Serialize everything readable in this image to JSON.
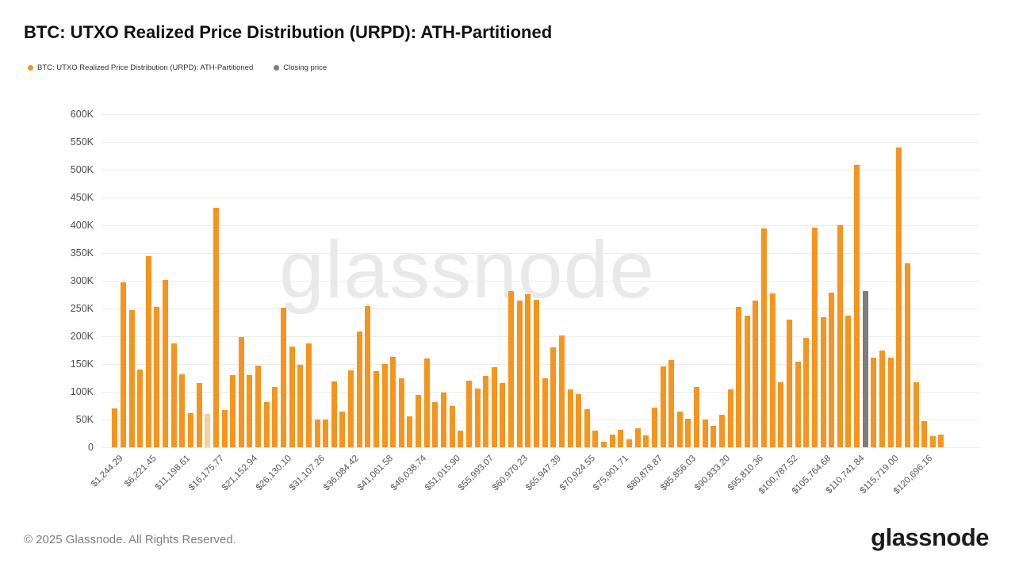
{
  "title": "BTC: UTXO Realized Price Distribution (URPD): ATH-Partitioned",
  "watermark": "glassnode",
  "legend": {
    "items": [
      {
        "label": "BTC: UTXO Realized Price Distribution (URPD): ATH-Partitioned",
        "color": "#F7941E"
      },
      {
        "label": "Closing price",
        "color": "#7E7E7E"
      }
    ]
  },
  "footer": {
    "copyright": "© 2025 Glassnode. All Rights Reserved.",
    "logo": "glassnode"
  },
  "chart_data": {
    "type": "bar",
    "title": "BTC: UTXO Realized Price Distribution (URPD): ATH-Partitioned",
    "ylabel": "",
    "xlabel": "",
    "y_axis_unit": "K",
    "ylim_k": [
      0,
      600
    ],
    "grid": true,
    "legend_position": "top-left",
    "bar_color": "#F7941E",
    "closing_price_color": "#7E7E7E",
    "grid_color": "#ececec",
    "axis_text_color": "#4d4d4d",
    "bin_width_usd": 1244.29,
    "x_tick_every": 4,
    "y_ticks": [
      {
        "v": 600,
        "label": "600K"
      },
      {
        "v": 550,
        "label": "550K"
      },
      {
        "v": 500,
        "label": "500K"
      },
      {
        "v": 450,
        "label": "450K"
      },
      {
        "v": 400,
        "label": "400K"
      },
      {
        "v": 350,
        "label": "350K"
      },
      {
        "v": 300,
        "label": "300K"
      },
      {
        "v": 250,
        "label": "250K"
      },
      {
        "v": 200,
        "label": "200K"
      },
      {
        "v": 150,
        "label": "150K"
      },
      {
        "v": 100,
        "label": "100K"
      },
      {
        "v": 50,
        "label": "50K"
      },
      {
        "v": 0,
        "label": "0"
      }
    ],
    "x_tick_labels": [
      "$1,244.29",
      "$6,221.45",
      "$11,198.61",
      "$16,175.77",
      "$21,152.94",
      "$26,130.10",
      "$31,107.26",
      "$36,084.42",
      "$41,061.58",
      "$46,038.74",
      "$51,015.90",
      "$55,993.07",
      "$60,970.23",
      "$65,947.39",
      "$70,924.55",
      "$75,901.71",
      "$80,878.87",
      "$85,856.03",
      "$90,833.20",
      "$95,810.36",
      "$100,787.52",
      "$105,764.68",
      "$110,741.84",
      "$115,719.00",
      "$120,696.16"
    ],
    "values_k": [
      70,
      297,
      247,
      140,
      344,
      253,
      301,
      187,
      131,
      61,
      116,
      60,
      431,
      67,
      130,
      198,
      130,
      147,
      81,
      109,
      252,
      181,
      149,
      187,
      50,
      50,
      119,
      64,
      138,
      209,
      254,
      137,
      150,
      163,
      124,
      56,
      94,
      160,
      81,
      99,
      74,
      30,
      120,
      106,
      129,
      144,
      116,
      281,
      264,
      276,
      266,
      124,
      180,
      201,
      104,
      96,
      68,
      30,
      10,
      23,
      31,
      14,
      35,
      22,
      72,
      146,
      157,
      64,
      52,
      109,
      50,
      39,
      58,
      104,
      253,
      237,
      264,
      394,
      277,
      117,
      230,
      154,
      197,
      396,
      234,
      279,
      400,
      237,
      509,
      282,
      161,
      174,
      161,
      540,
      331,
      117,
      47,
      20,
      23
    ],
    "muted_bar_index": 11,
    "closing_price_bar_index": 89
  }
}
